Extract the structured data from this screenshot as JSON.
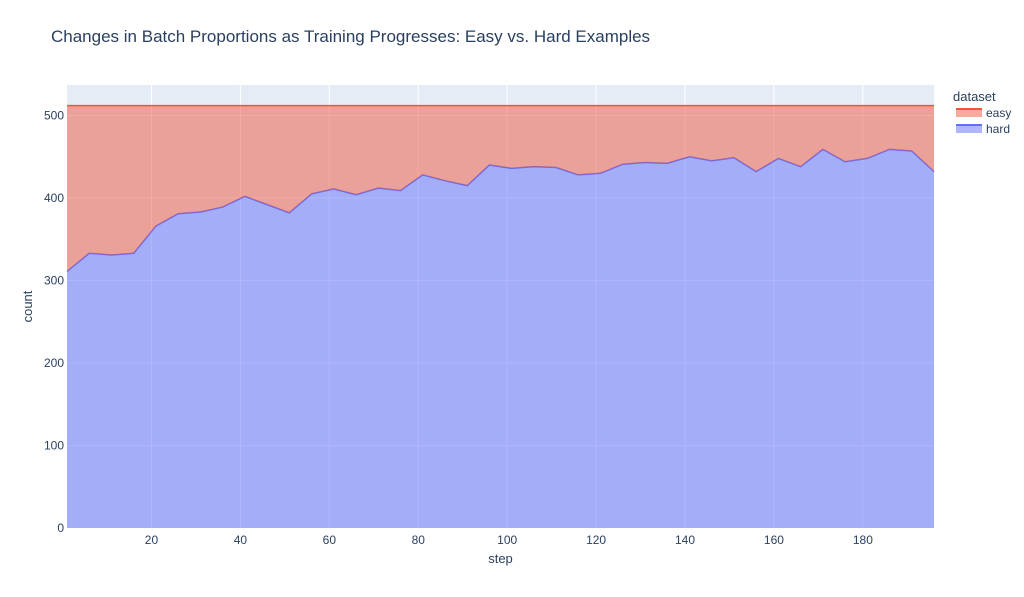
{
  "chart_data": {
    "type": "area",
    "title": "Changes in Batch Proportions as Training Progresses: Easy vs. Hard Examples",
    "xlabel": "step",
    "ylabel": "count",
    "xlim": [
      1,
      196
    ],
    "ylim": [
      0,
      537
    ],
    "x_ticks": [
      20,
      40,
      60,
      80,
      100,
      120,
      140,
      160,
      180
    ],
    "y_ticks": [
      0,
      100,
      200,
      300,
      400,
      500
    ],
    "stacked": true,
    "grid": true,
    "legend_title": "dataset",
    "legend_position": "top-right",
    "x": [
      1,
      6,
      11,
      16,
      21,
      26,
      31,
      36,
      41,
      46,
      51,
      56,
      61,
      66,
      71,
      76,
      81,
      86,
      91,
      96,
      101,
      106,
      111,
      116,
      121,
      126,
      131,
      136,
      141,
      146,
      151,
      156,
      161,
      166,
      171,
      176,
      181,
      186,
      191,
      196
    ],
    "series": [
      {
        "name": "hard",
        "color": "#636efa",
        "values": [
          311,
          333,
          331,
          333,
          366,
          381,
          383,
          389,
          402,
          392,
          382,
          405,
          411,
          404,
          412,
          409,
          428,
          421,
          415,
          440,
          436,
          438,
          437,
          428,
          430,
          441,
          443,
          442,
          450,
          445,
          449,
          432,
          448,
          438,
          459,
          444,
          448,
          459,
          457,
          432
        ]
      },
      {
        "name": "easy",
        "color": "#ef553b",
        "values": [
          201,
          179,
          181,
          179,
          146,
          131,
          129,
          123,
          110,
          120,
          130,
          107,
          101,
          108,
          100,
          103,
          84,
          91,
          97,
          72,
          76,
          74,
          75,
          84,
          82,
          71,
          69,
          70,
          62,
          67,
          63,
          80,
          64,
          74,
          53,
          68,
          64,
          53,
          55,
          80
        ]
      }
    ]
  }
}
